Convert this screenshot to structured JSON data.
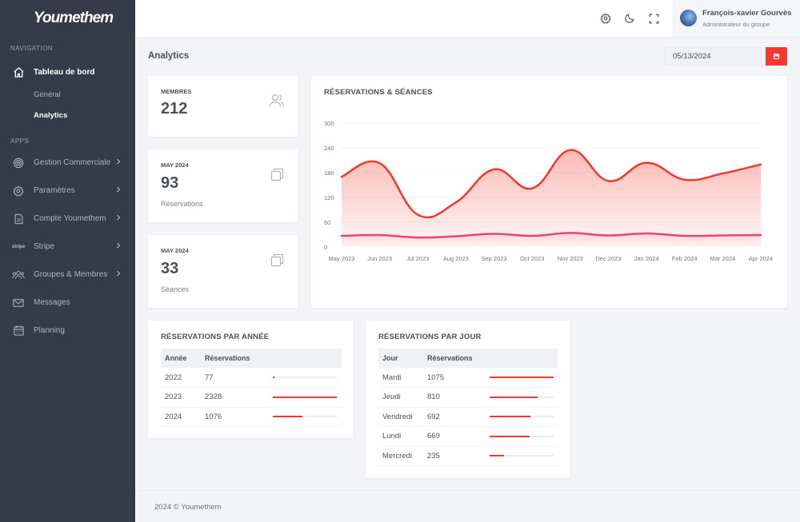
{
  "sidebar": {
    "logo": "Youmethem",
    "nav_title": "NAVIGATION",
    "dashboard": "Tableau de bord",
    "sub_general": "Général",
    "sub_analytics": "Analytics",
    "apps_title": "APPS",
    "items": [
      {
        "label": "Gestion Commerciale",
        "icon": "target-icon"
      },
      {
        "label": "Paramètres",
        "icon": "settings-icon"
      },
      {
        "label": "Compte Youmethem",
        "icon": "document-icon"
      },
      {
        "label": "Stripe",
        "icon": "stripe-icon",
        "icon_text": "stripe"
      },
      {
        "label": "Groupes & Membres",
        "icon": "users-icon"
      },
      {
        "label": "Messages",
        "icon": "mail-icon"
      },
      {
        "label": "Planning",
        "icon": "calendar-icon"
      }
    ]
  },
  "topbar": {
    "user_name": "François-xavier Gourvès",
    "user_role": "Administrateur du groupe"
  },
  "page": {
    "title": "Analytics",
    "date": "05/13/2024"
  },
  "stats": [
    {
      "label": "MEMBRES",
      "value": "212",
      "sub": ""
    },
    {
      "label": "MAY 2024",
      "value": "93",
      "sub": "Réservations"
    },
    {
      "label": "MAY 2024",
      "value": "33",
      "sub": "Séances"
    }
  ],
  "chart_title": "RÉSERVATIONS & SÉANCES",
  "chart_data": {
    "type": "area",
    "categories": [
      "May 2023",
      "Jun 2023",
      "Jul 2023",
      "Aug 2023",
      "Sep 2023",
      "Oct 2023",
      "Nov 2023",
      "Dec 2023",
      "Jan 2024",
      "Feb 2024",
      "Mar 2024",
      "Apr 2024"
    ],
    "series": [
      {
        "values": [
          170,
          203,
          78,
          108,
          188,
          142,
          235,
          160,
          204,
          163,
          178,
          200
        ],
        "color": "#f5382b"
      },
      {
        "values": [
          27,
          29,
          23,
          26,
          32,
          27,
          34,
          28,
          33,
          27,
          28,
          29
        ],
        "color": "#e8456b"
      }
    ],
    "ylim": [
      0,
      300
    ],
    "yticks": [
      "0",
      "60",
      "120",
      "180",
      "240",
      "300"
    ]
  },
  "year_table": {
    "title": "RÉSERVATIONS PAR ANNÉE",
    "headers": [
      "Année",
      "Réservations"
    ],
    "rows": [
      {
        "label": "2022",
        "value": "77",
        "ratio": 0.03
      },
      {
        "label": "2023",
        "value": "2328",
        "ratio": 1.0
      },
      {
        "label": "2024",
        "value": "1076",
        "ratio": 0.46
      }
    ]
  },
  "day_table": {
    "title": "RÉSERVATIONS PAR JOUR",
    "headers": [
      "Jour",
      "Réservations"
    ],
    "rows": [
      {
        "label": "Mardi",
        "value": "1075",
        "ratio": 1.0
      },
      {
        "label": "Jeudi",
        "value": "810",
        "ratio": 0.75
      },
      {
        "label": "Vendredi",
        "value": "692",
        "ratio": 0.64
      },
      {
        "label": "Lundi",
        "value": "669",
        "ratio": 0.62
      },
      {
        "label": "Mercredi",
        "value": "235",
        "ratio": 0.22
      }
    ]
  },
  "footer": "2024 © Youmethem"
}
